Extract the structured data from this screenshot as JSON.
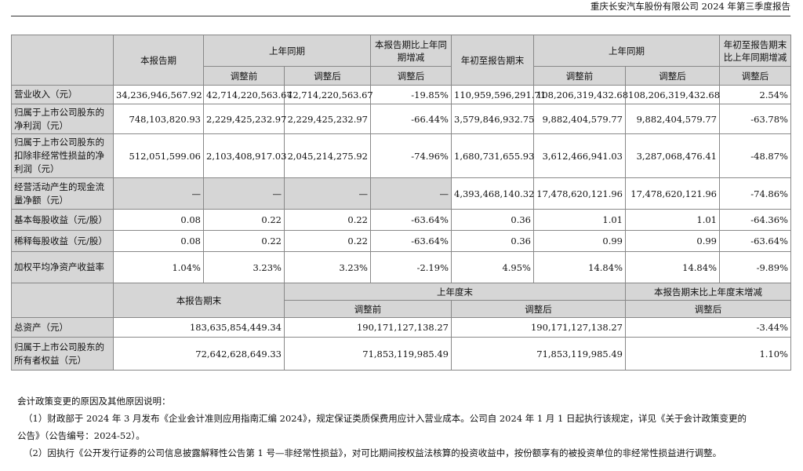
{
  "page_header": "重庆长安汽车股份有限公司 2024 年第三季度报告",
  "table1": {
    "h_current": "本报告期",
    "h_prior": "上年同期",
    "h_change": "本报告期比上年同期增减",
    "h_ytd": "年初至报告期末",
    "h_prior_ytd": "上年同期",
    "h_ytd_change": "年初至报告期末比上年同期增减",
    "sub_before": "调整前",
    "sub_after": "调整后",
    "sub_change": "调整后",
    "sub_before2": "调整前",
    "sub_after2": "调整后",
    "sub_change2": "调整后",
    "rows": [
      {
        "label": "营业收入（元）",
        "v": [
          "34,236,946,567.92",
          "42,714,220,563.67",
          "42,714,220,563.67",
          "-19.85%",
          "110,959,596,291.71",
          "108,206,319,432.68",
          "108,206,319,432.68",
          "2.54%"
        ]
      },
      {
        "label": "归属于上市公司股东的净利润（元）",
        "v": [
          "748,103,820.93",
          "2,229,425,232.97",
          "2,229,425,232.97",
          "-66.44%",
          "3,579,846,932.75",
          "9,882,404,579.77",
          "9,882,404,579.77",
          "-63.78%"
        ]
      },
      {
        "label": "归属于上市公司股东的扣除非经常性损益的净利润（元）",
        "v": [
          "512,051,599.06",
          "2,103,408,917.03",
          "2,045,214,275.92",
          "-74.96%",
          "1,680,731,655.93",
          "3,612,466,941.03",
          "3,287,068,476.41",
          "-48.87%"
        ]
      },
      {
        "label": "经营活动产生的现金流量净额（元）",
        "v": [
          "—",
          "—",
          "—",
          "—",
          "4,393,468,140.32",
          "17,478,620,121.96",
          "17,478,620,121.96",
          "-74.86%"
        ]
      },
      {
        "label": "基本每股收益（元/股）",
        "v": [
          "0.08",
          "0.22",
          "0.22",
          "-63.64%",
          "0.36",
          "1.01",
          "1.01",
          "-64.36%"
        ]
      },
      {
        "label": "稀释每股收益（元/股）",
        "v": [
          "0.08",
          "0.22",
          "0.22",
          "-63.64%",
          "0.36",
          "0.99",
          "0.99",
          "-63.64%"
        ]
      },
      {
        "label": "加权平均净资产收益率",
        "v": [
          "1.04%",
          "3.23%",
          "3.23%",
          "-2.19%",
          "4.95%",
          "14.84%",
          "14.84%",
          "-9.89%"
        ]
      }
    ]
  },
  "table2": {
    "h_period_end": "本报告期末",
    "h_prior_year_end": "上年度末",
    "h_change": "本报告期末比上年度末增减",
    "sub_before": "调整前",
    "sub_after": "调整后",
    "sub_change": "调整后",
    "rows": [
      {
        "label": "总资产（元）",
        "v": [
          "183,635,854,449.34",
          "190,171,127,138.27",
          "190,171,127,138.27",
          "-3.44%"
        ]
      },
      {
        "label": "归属于上市公司股东的所有者权益（元）",
        "v": [
          "72,642,628,649.33",
          "71,853,119,985.49",
          "71,853,119,985.49",
          "1.10%"
        ]
      }
    ]
  },
  "notes": {
    "title": "会计政策变更的原因及其他原因说明：",
    "n1a": "（1）财政部于 2024 年 3 月发布《企业会计准则应用指南汇编 2024》，规定保证类质保费用应计入营业成本。公司自 2024 年 1 月 1 日起执行该规定，详见《关于会计政策变更的",
    "n1b": "公告》（公告编号：2024-52）。",
    "n2": "（2）因执行《公开发行证券的公司信息披露解释性公告第 1 号—非经常性损益》，对可比期间按权益法核算的投资收益中，按份额享有的被投资单位的非经常性损益进行调整。"
  }
}
